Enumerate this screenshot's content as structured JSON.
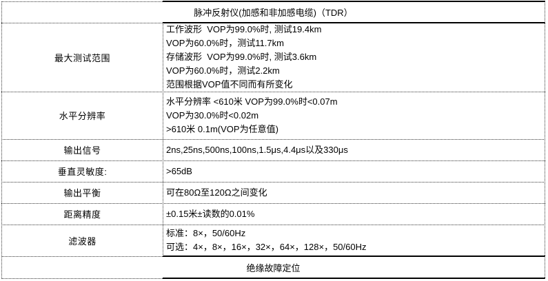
{
  "header": {
    "title": "脉冲反射仪(加感和非加感电缆)（TDR）"
  },
  "rows": [
    {
      "label": "最大测试范围",
      "lines": [
        "工作波形  VOP为99.0%时, 测试19.4km",
        "VOP为60.0%时，测试11.7km",
        "存储波形  VOP为99.0%时, 测试3.6km",
        "VOP为60.0%时，测试2.2km",
        "范围根据VOP值不同而有所变化"
      ]
    },
    {
      "label": "水平分辨率",
      "lines": [
        "水平分辨率 <610米 VOP为99.0%时<0.07m",
        "VOP为30.0%时<0.02m",
        ">610米 0.1m(VOP为任意值)"
      ]
    },
    {
      "label": "输出信号",
      "lines": [
        "2ns,25ns,500ns,100ns,1.5μs,4.4μs以及330μs"
      ]
    },
    {
      "label": "垂直灵敏度:",
      "lines": [
        ">65dB"
      ]
    },
    {
      "label": "输出平衡",
      "lines": [
        "可在80Ω至120Ω之间变化"
      ]
    },
    {
      "label": "距离精度",
      "lines": [
        "±0.15米±读数的0.01%"
      ]
    },
    {
      "label": "滤波器",
      "lines": [
        "标准：8×，50/60Hz",
        "可选：4×，8×，16×，32×，64×，128×，50/60Hz"
      ]
    }
  ],
  "footer": {
    "title": "绝缘故障定位"
  },
  "colors": {
    "text": "#000000",
    "grid_dotted": "#333333",
    "grid_solid": "#000000",
    "background": "#ffffff"
  }
}
